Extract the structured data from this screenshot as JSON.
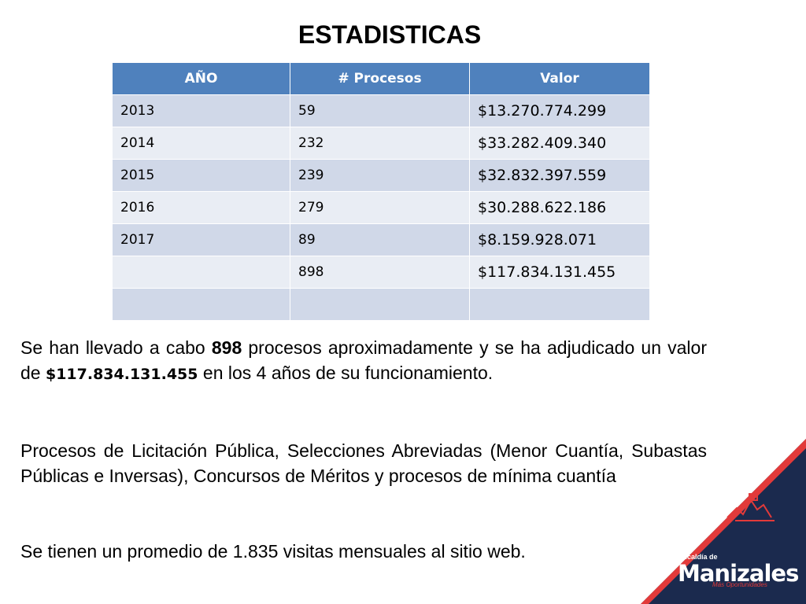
{
  "title": "ESTADISTICAS",
  "table": {
    "headers": [
      "AÑO",
      "# Procesos",
      "Valor"
    ],
    "rows": [
      [
        "2013",
        "59",
        "$13.270.774.299"
      ],
      [
        "2014",
        "232",
        "$33.282.409.340"
      ],
      [
        "2015",
        "239",
        "$32.832.397.559"
      ],
      [
        "2016",
        "279",
        "$30.288.622.186"
      ],
      [
        "2017",
        "89",
        "$8.159.928.071"
      ],
      [
        "",
        "898",
        "$117.834.131.455"
      ],
      [
        "",
        "",
        ""
      ]
    ]
  },
  "paragraphs": {
    "p1_a": "Se han llevado a cabo ",
    "p1_num": "898",
    "p1_b": " procesos aproximadamente y se ha adjudicado un valor de ",
    "p1_val": "$117.834.131.455",
    "p1_c": " en los 4 años de su funcionamiento.",
    "p2": "Procesos de Licitación Pública, Selecciones Abreviadas (Menor Cuantía, Subastas Públicas e Inversas), Concursos de Méritos y procesos de mínima cuantía",
    "p3": "Se tienen un promedio de 1.835 visitas mensuales al sitio web."
  },
  "logo": {
    "prefix": "Alcaldía de",
    "name": "Manizales",
    "tagline": "Más Oportunidades"
  },
  "colors": {
    "header": "#4f81bd",
    "row_odd": "#d0d8e8",
    "row_even": "#e9edf4",
    "corner_navy": "#1b2a4e",
    "corner_red": "#e23a3a"
  }
}
